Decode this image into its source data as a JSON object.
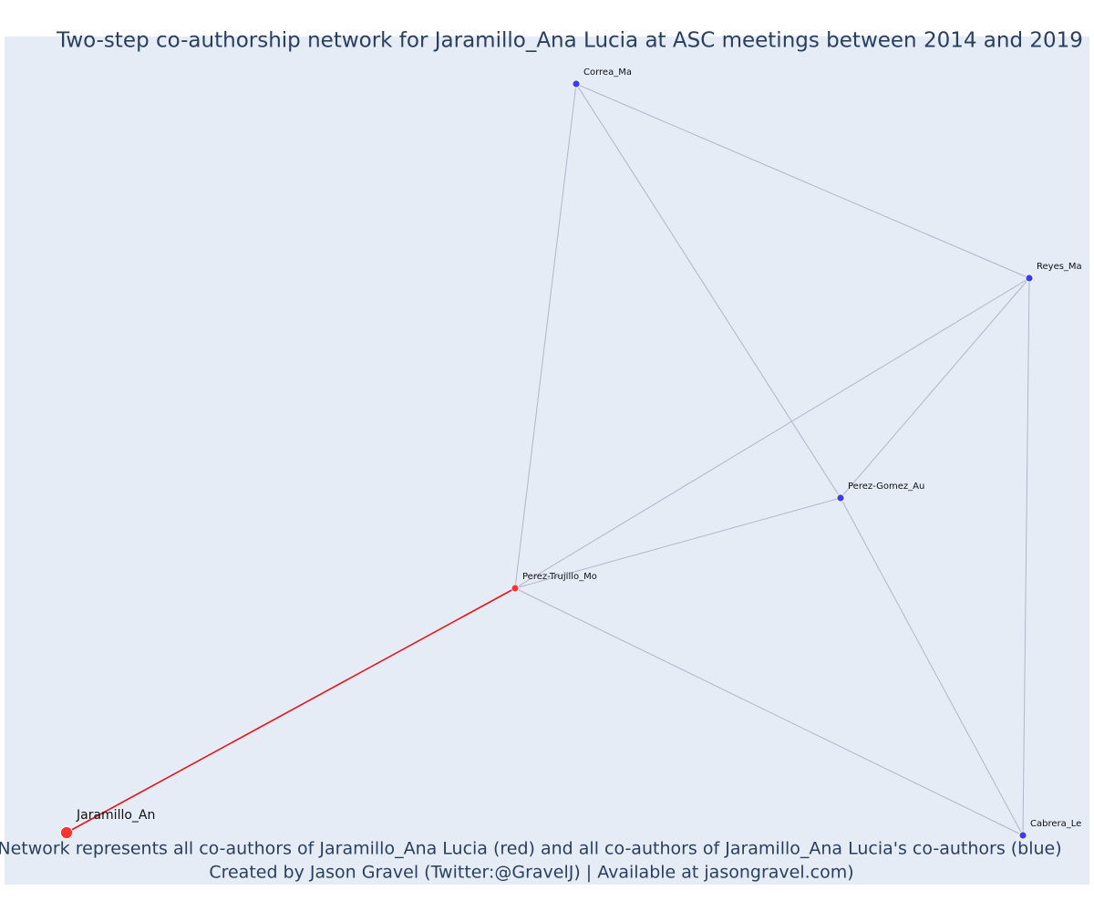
{
  "title": "Two-step co-authorship network for Jaramillo_Ana Lucia at ASC meetings between 2014 and 2019",
  "footer": [
    "Network represents all co-authors of Jaramillo_Ana Lucia (red) and all co-authors of Jaramillo_Ana Lucia's co-authors (blue)",
    "Created by Jason Gravel (Twitter:@GravelJ) | Available at jasongravel.com)"
  ],
  "nodes": [
    {
      "label": "Jaramillo_An",
      "color": "#ff3333"
    },
    {
      "label": "Perez-Trujillo_Mo",
      "color": "#ff3333"
    },
    {
      "label": "Correa_Ma",
      "color": "#3b3bf0"
    },
    {
      "label": "Reyes_Ma",
      "color": "#3b3bf0"
    },
    {
      "label": "Perez-Gomez_Au",
      "color": "#3b3bf0"
    },
    {
      "label": "Cabrera_Le",
      "color": "#3b3bf0"
    }
  ]
}
